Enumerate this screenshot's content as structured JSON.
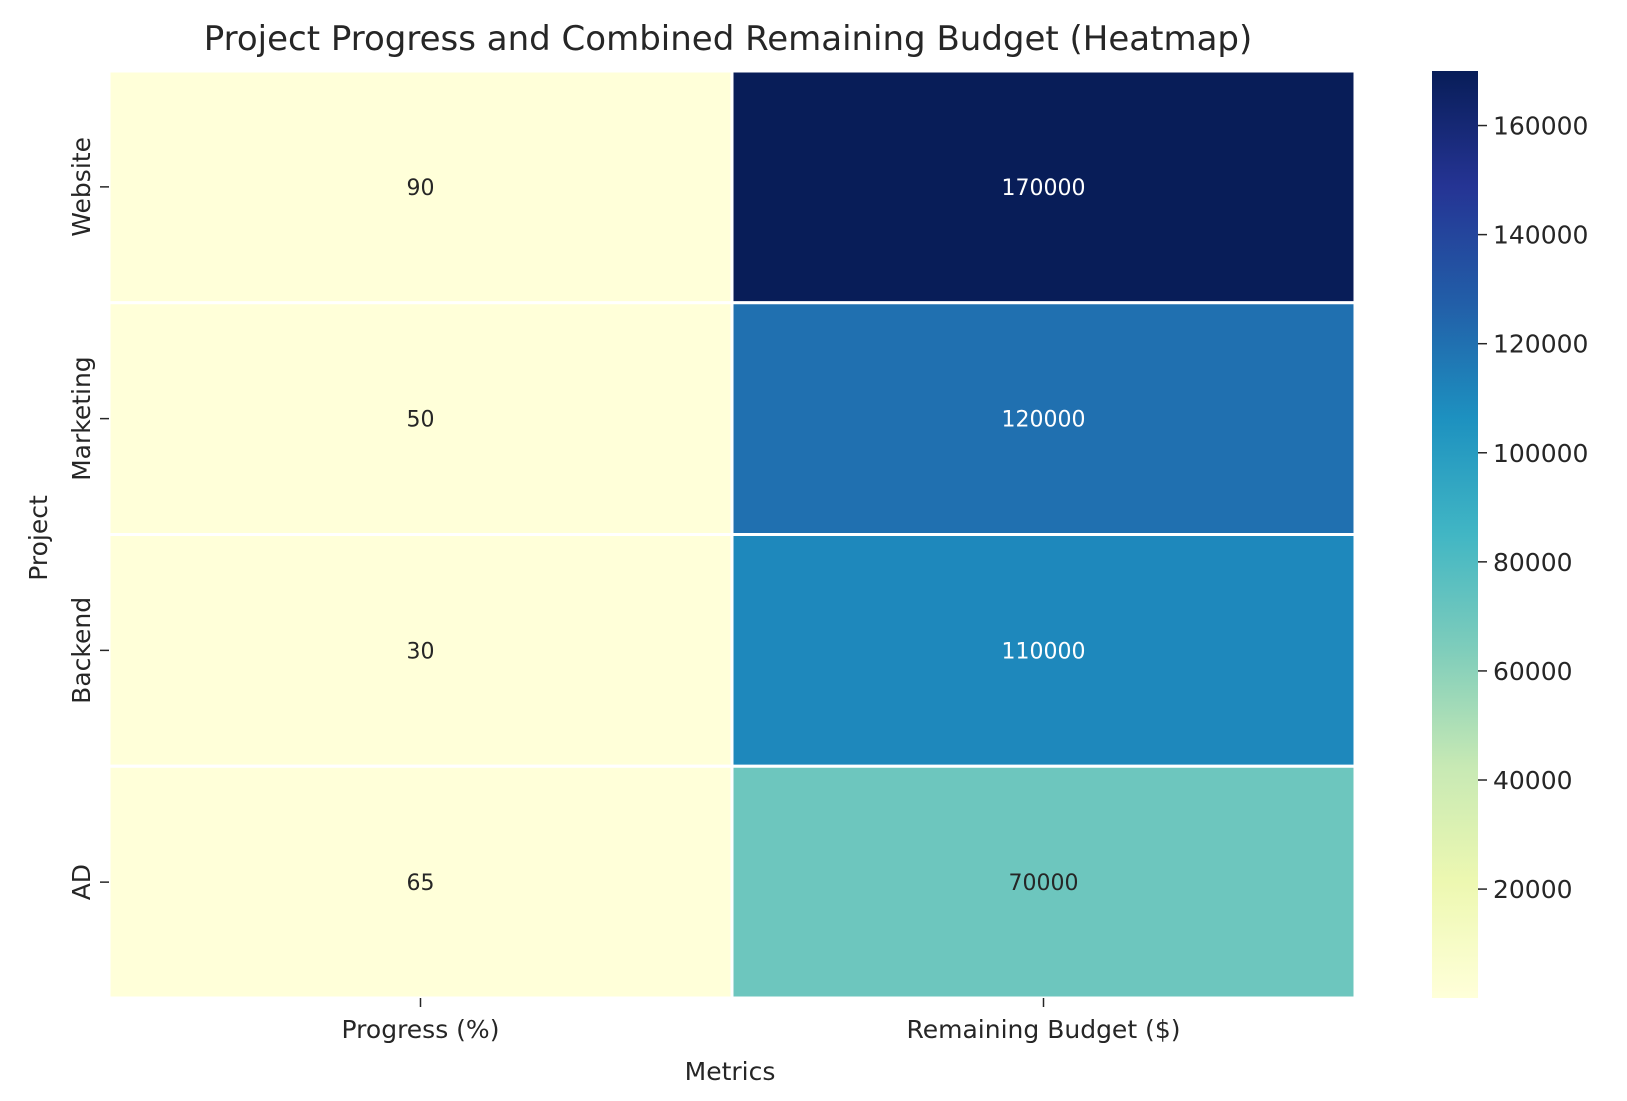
{
  "chart_data": {
    "type": "heatmap",
    "title": "Project Progress and Combined Remaining Budget (Heatmap)",
    "xlabel": "Metrics",
    "ylabel": "Project",
    "columns": [
      "Progress (%)",
      "Remaining Budget ($)"
    ],
    "rows": [
      "Website",
      "Marketing",
      "Backend",
      "AD"
    ],
    "values": [
      [
        90,
        170000
      ],
      [
        50,
        120000
      ],
      [
        30,
        110000
      ],
      [
        65,
        70000
      ]
    ],
    "colormap": "YlGnBu",
    "colorbar": {
      "range": [
        30,
        170000
      ],
      "ticks": [
        "20000",
        "40000",
        "60000",
        "80000",
        "100000",
        "120000",
        "140000",
        "160000"
      ]
    },
    "annotations": true,
    "grid": false,
    "legend": "colorbar-right"
  }
}
